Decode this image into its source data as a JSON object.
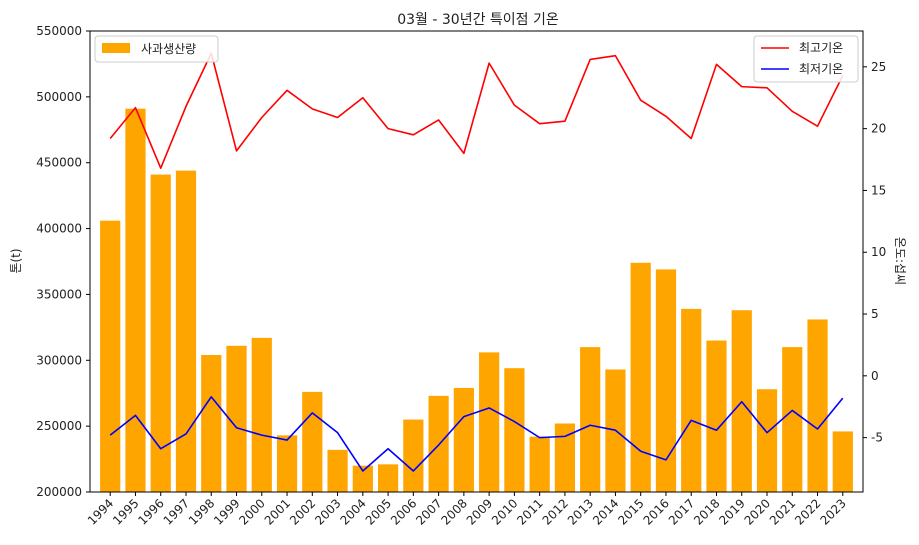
{
  "chart_data": {
    "type": "bar",
    "title": "03월 - 30년간 특이점 기온",
    "categories": [
      "1994",
      "1995",
      "1996",
      "1997",
      "1998",
      "1999",
      "2000",
      "2001",
      "2002",
      "2003",
      "2004",
      "2005",
      "2006",
      "2007",
      "2008",
      "2009",
      "2010",
      "2011",
      "2012",
      "2013",
      "2014",
      "2015",
      "2016",
      "2017",
      "2018",
      "2019",
      "2020",
      "2021",
      "2022",
      "2023"
    ],
    "y_left": {
      "label": "톤(t)",
      "ylim": [
        200000,
        550000
      ],
      "ticks": [
        200000,
        250000,
        300000,
        350000,
        400000,
        450000,
        500000,
        550000
      ]
    },
    "y_right": {
      "label": "온도:섭씨",
      "ylim": [
        -9.4,
        27.9
      ],
      "ticks": [
        -5,
        0,
        5,
        10,
        15,
        20,
        25
      ]
    },
    "bar_series": {
      "name": "사과생산량",
      "color": "#ffa500",
      "values": [
        406000,
        491000,
        441000,
        444000,
        304000,
        311000,
        317000,
        243000,
        276000,
        232000,
        220000,
        221000,
        255000,
        273000,
        279000,
        306000,
        294000,
        242000,
        252000,
        310000,
        293000,
        374000,
        369000,
        339000,
        315000,
        338000,
        278000,
        310000,
        331000,
        246000
      ]
    },
    "line_series": [
      {
        "name": "최고기온",
        "color": "#ff0000",
        "values": [
          19.2,
          21.7,
          16.8,
          21.8,
          26.1,
          18.2,
          20.9,
          23.1,
          21.6,
          20.9,
          22.5,
          20.0,
          19.5,
          20.7,
          18.0,
          25.3,
          21.9,
          20.4,
          20.6,
          25.6,
          25.9,
          22.3,
          21.0,
          19.2,
          25.2,
          23.4,
          23.3,
          21.4,
          20.2,
          24.3
        ]
      },
      {
        "name": "최저기온",
        "color": "#0000ff",
        "values": [
          -4.8,
          -3.2,
          -5.9,
          -4.7,
          -1.7,
          -4.2,
          -4.8,
          -5.2,
          -3.0,
          -4.6,
          -7.7,
          -5.9,
          -7.7,
          -5.6,
          -3.3,
          -2.6,
          -3.7,
          -5.0,
          -4.9,
          -4.0,
          -4.4,
          -6.1,
          -6.8,
          -3.6,
          -4.4,
          -2.1,
          -4.6,
          -2.8,
          -4.3,
          -1.8
        ]
      }
    ],
    "legends": {
      "bar_legend_position": "upper-left",
      "line_legend_position": "upper-right"
    },
    "grid": false
  }
}
